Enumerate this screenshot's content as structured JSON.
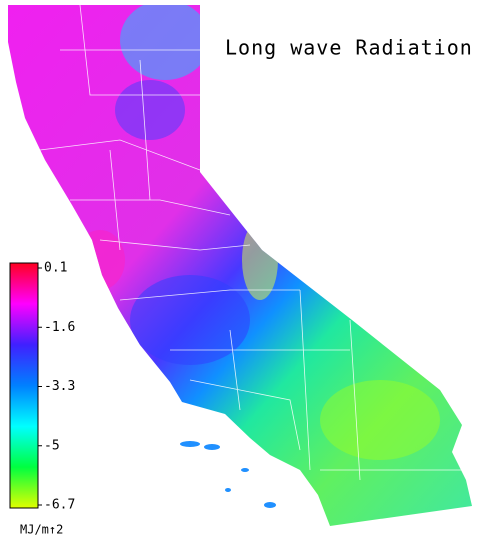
{
  "map": {
    "title": "Long wave Radiation",
    "colorbar": {
      "lim": [
        -6.7,
        0.1
      ],
      "ticks": [
        0.1,
        -1.6,
        -3.3,
        -5.0,
        -6.7
      ],
      "colors": [
        "#ff0020",
        "#ff00ff",
        "#4020ff",
        "#0080ff",
        "#00ffff",
        "#00ff40",
        "#e0ff00"
      ],
      "unit": "MJ/m↑2"
    }
  }
}
